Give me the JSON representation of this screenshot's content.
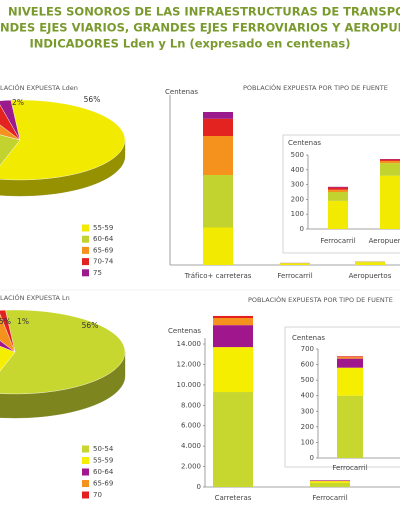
{
  "header": {
    "lines": [
      "NIVELES SONOROS DE LAS INFRAESTRUCTURAS DE TRANSPORTE",
      "NDES EJES VIARIOS, GRANDES EJES FERROVIARIOS Y AEROPUER",
      "INDICADORES Lden y Ln (expresado en centenas)"
    ]
  },
  "chart_data": [
    {
      "type": "pie",
      "title": "LACIÓN EXPUESTA Lden",
      "categories": [
        "55-59",
        "60-64",
        "65-69",
        "70-74",
        "75"
      ],
      "values": [
        56,
        30,
        8,
        4,
        2
      ],
      "value_labels": [
        "56%",
        null,
        null,
        null,
        "2%"
      ],
      "colors": [
        "#f2ea00",
        "#c2d22e",
        "#f5921e",
        "#e2231f",
        "#9b1b8c"
      ]
    },
    {
      "type": "bar",
      "title": "POBLACIÓN EXPUESTA POR TIPO DE FUENTE",
      "ylabel": "Centenas",
      "categories": [
        "Tráfico+ carreteras",
        "Ferrocarril",
        "Aeropuertos"
      ],
      "ylim": [
        0,
        22000
      ],
      "series": [
        {
          "color": "#f2ea00",
          "values": [
            5000,
            190,
            360
          ]
        },
        {
          "color": "#c2d22e",
          "values": [
            7000,
            60,
            85
          ]
        },
        {
          "color": "#f5921e",
          "values": [
            5200,
            15,
            15
          ]
        },
        {
          "color": "#e2231f",
          "values": [
            2300,
            15,
            10
          ]
        },
        {
          "color": "#9b1b8c",
          "values": [
            900,
            5,
            3
          ]
        }
      ]
    },
    {
      "type": "bar",
      "ylabel": "Centenas",
      "categories": [
        "Ferrocarril",
        "Aeropuertos"
      ],
      "ylim": [
        0,
        500
      ],
      "yticks": [
        0,
        100,
        200,
        300,
        400,
        500
      ],
      "series": [
        {
          "color": "#f2ea00",
          "values": [
            190,
            360
          ]
        },
        {
          "color": "#c2d22e",
          "values": [
            60,
            85
          ]
        },
        {
          "color": "#f5921e",
          "values": [
            15,
            15
          ]
        },
        {
          "color": "#e2231f",
          "values": [
            15,
            10
          ]
        },
        {
          "color": "#9b1b8c",
          "values": [
            5,
            3
          ]
        }
      ]
    },
    {
      "type": "pie",
      "title": "LACIÓN EXPUESTA Ln",
      "categories": [
        "50-54",
        "55-59",
        "60-64",
        "65-69",
        "70"
      ],
      "values": [
        56,
        33,
        5,
        5,
        1
      ],
      "value_labels": [
        "56%",
        null,
        "5%",
        null,
        "1%"
      ],
      "colors": [
        "#c8d630",
        "#f5ee00",
        "#a0168c",
        "#f5921e",
        "#e3201f"
      ]
    },
    {
      "type": "bar",
      "title": "POBLACIÓN EXPUESTA POR TIPO DE FUENTE",
      "ylabel": "Centenas",
      "categories": [
        "Carreteras",
        "Ferrocarril"
      ],
      "ylim": [
        0,
        17000
      ],
      "yticks": [
        0,
        {
          "value": 2000,
          "label": "2.000"
        },
        {
          "value": 4000,
          "label": "4.000"
        },
        {
          "value": 6000,
          "label": "6.000"
        },
        {
          "value": 8000,
          "label": "8.000"
        },
        {
          "value": 10000,
          "label": "10.000"
        },
        {
          "value": 12000,
          "label": "12.000"
        },
        {
          "value": 14000,
          "label": "14.000"
        }
      ],
      "series": [
        {
          "color": "#c8d630",
          "values": [
            9300,
            400
          ]
        },
        {
          "color": "#f5ee00",
          "values": [
            4400,
            180
          ]
        },
        {
          "color": "#a0168c",
          "values": [
            2150,
            58
          ]
        },
        {
          "color": "#f5921e",
          "values": [
            700,
            10
          ]
        },
        {
          "color": "#e3201f",
          "values": [
            200,
            5
          ]
        }
      ]
    },
    {
      "type": "bar",
      "ylabel": "Centenas",
      "categories": [
        "Ferrocarril"
      ],
      "ylim": [
        0,
        700
      ],
      "yticks": [
        0,
        100,
        200,
        300,
        400,
        500,
        600,
        700
      ],
      "series": [
        {
          "color": "#c8d630",
          "values": [
            400
          ]
        },
        {
          "color": "#f5ee00",
          "values": [
            180
          ]
        },
        {
          "color": "#a0168c",
          "values": [
            58
          ]
        },
        {
          "color": "#f5921e",
          "values": [
            10
          ]
        },
        {
          "color": "#e3201f",
          "values": [
            5
          ]
        }
      ]
    }
  ]
}
